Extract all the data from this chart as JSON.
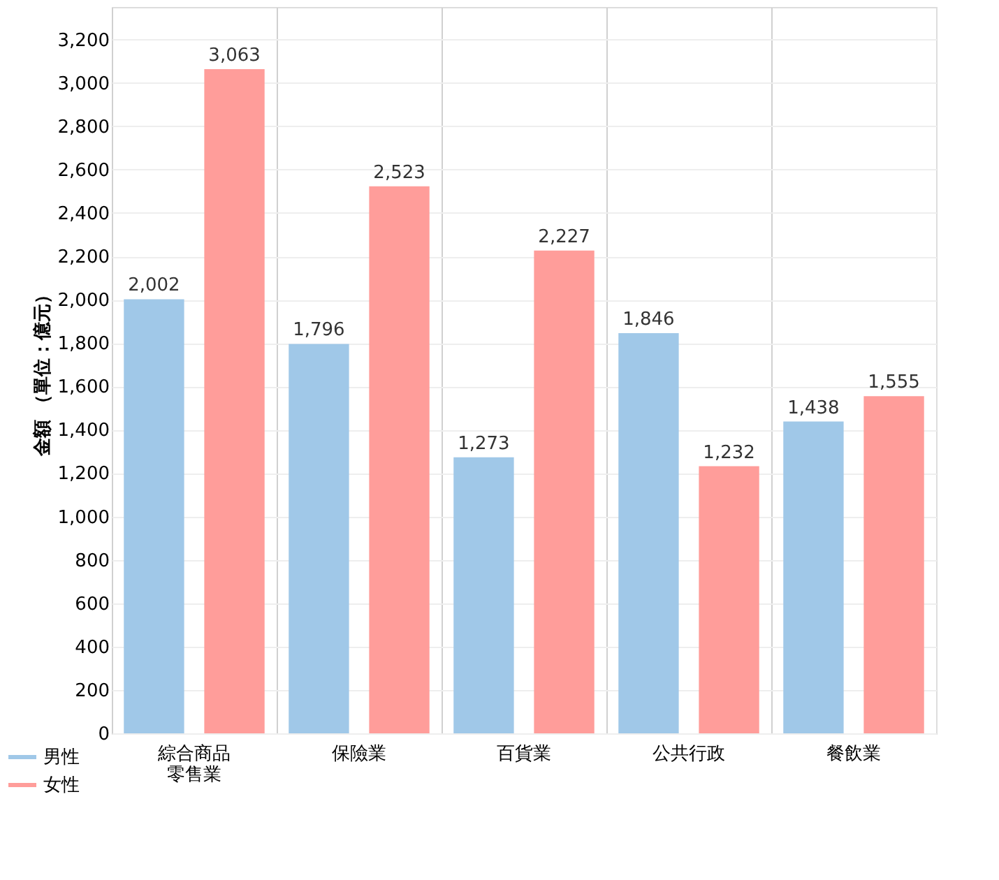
{
  "chart_data": {
    "type": "bar",
    "ylabel": "金額 （單位：億元）",
    "categories": [
      "綜合商品零售業",
      "保險業",
      "百貨業",
      "公共行政",
      "餐飲業"
    ],
    "series": [
      {
        "name": "男性",
        "color": "#a0c8e8",
        "values": [
          2002,
          1796,
          1273,
          1846,
          1438
        ],
        "value_labels": [
          "2,002",
          "1,796",
          "1,273",
          "1,846",
          "1,438"
        ]
      },
      {
        "name": "女性",
        "color": "#ff9d9a",
        "values": [
          3063,
          2523,
          2227,
          1232,
          1555
        ],
        "value_labels": [
          "3,063",
          "2,523",
          "2,227",
          "1,232",
          "1,555"
        ]
      }
    ],
    "ylim": [
      0,
      3350
    ],
    "yticks": [
      0,
      200,
      {
        "value": 400,
        "label": "400"
      },
      {
        "value": 600,
        "label": "600"
      },
      {
        "value": 800,
        "label": "800"
      },
      {
        "value": 1000,
        "label": "1,000"
      },
      {
        "value": 1200,
        "label": "1,200"
      },
      {
        "value": 1400,
        "label": "1,400"
      },
      {
        "value": 1600,
        "label": "1,600"
      },
      {
        "value": 1800,
        "label": "1,800"
      },
      {
        "value": 2000,
        "label": "2,000"
      },
      {
        "value": 2200,
        "label": "2,200"
      },
      {
        "value": 2400,
        "label": "2,400"
      },
      {
        "value": 2600,
        "label": "2,600"
      },
      {
        "value": 2800,
        "label": "2,800"
      },
      {
        "value": 3000,
        "label": "3,000"
      },
      {
        "value": 3200,
        "label": "3,200"
      }
    ],
    "grid": true,
    "legend": "bottom left"
  }
}
